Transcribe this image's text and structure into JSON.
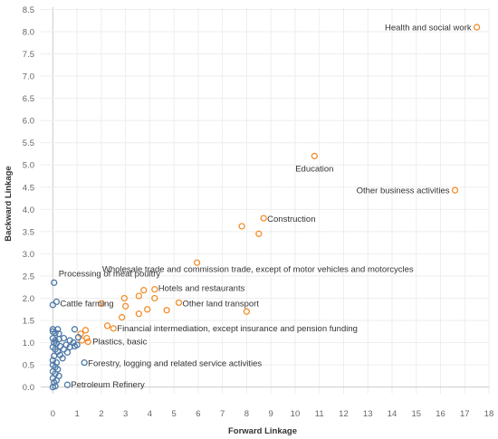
{
  "chart_data": {
    "type": "scatter",
    "title": "",
    "xlabel": "Forward Linkage",
    "ylabel": "Backward Linkage",
    "xlim": [
      -0.5,
      18
    ],
    "ylim": [
      -0.15,
      8.55
    ],
    "xticks": [
      0,
      1,
      2,
      3,
      4,
      5,
      6,
      7,
      8,
      9,
      10,
      11,
      12,
      13,
      14,
      15,
      16,
      17,
      18
    ],
    "yticks": [
      0.0,
      0.5,
      1.0,
      1.5,
      2.0,
      2.5,
      3.0,
      3.5,
      4.0,
      4.5,
      5.0,
      5.5,
      6.0,
      6.5,
      7.0,
      7.5,
      8.0,
      8.5
    ],
    "grid": true,
    "legend": "none",
    "colors": {
      "orange": "#f28e2b",
      "blue": "#4e79a7"
    },
    "series": [
      {
        "color": "orange",
        "points": [
          [
            17.5,
            8.1
          ],
          [
            10.8,
            5.2
          ],
          [
            16.6,
            4.43
          ],
          [
            8.7,
            3.8
          ],
          [
            7.8,
            3.62
          ],
          [
            8.5,
            3.45
          ],
          [
            5.95,
            2.8
          ],
          [
            4.2,
            2.2
          ],
          [
            3.75,
            2.18
          ],
          [
            4.2,
            2.0
          ],
          [
            3.55,
            2.05
          ],
          [
            2.95,
            2.0
          ],
          [
            5.2,
            1.9
          ],
          [
            4.7,
            1.73
          ],
          [
            3.9,
            1.75
          ],
          [
            3.0,
            1.82
          ],
          [
            3.55,
            1.65
          ],
          [
            2.85,
            1.57
          ],
          [
            8.0,
            1.7
          ],
          [
            2.0,
            1.88
          ],
          [
            2.25,
            1.38
          ],
          [
            1.35,
            1.28
          ],
          [
            2.5,
            1.32
          ],
          [
            1.15,
            1.2
          ],
          [
            1.4,
            1.1
          ],
          [
            1.2,
            1.05
          ],
          [
            1.45,
            1.02
          ]
        ]
      },
      {
        "color": "blue",
        "points": [
          [
            0.05,
            2.35
          ],
          [
            0.15,
            1.92
          ],
          [
            0.0,
            1.85
          ],
          [
            0.0,
            1.3
          ],
          [
            0.2,
            1.3
          ],
          [
            0.0,
            1.25
          ],
          [
            0.1,
            1.22
          ],
          [
            0.25,
            1.2
          ],
          [
            0.9,
            1.3
          ],
          [
            1.05,
            1.12
          ],
          [
            0.0,
            1.1
          ],
          [
            0.1,
            1.05
          ],
          [
            0.25,
            1.08
          ],
          [
            0.45,
            1.1
          ],
          [
            0.7,
            1.05
          ],
          [
            0.85,
            1.0
          ],
          [
            1.0,
            0.95
          ],
          [
            0.05,
            1.0
          ],
          [
            0.15,
            0.98
          ],
          [
            0.55,
            0.95
          ],
          [
            0.3,
            0.92
          ],
          [
            0.7,
            0.9
          ],
          [
            0.9,
            0.92
          ],
          [
            0.0,
            0.9
          ],
          [
            0.1,
            0.85
          ],
          [
            0.2,
            0.8
          ],
          [
            0.45,
            0.85
          ],
          [
            0.6,
            0.78
          ],
          [
            0.3,
            0.72
          ],
          [
            0.05,
            0.7
          ],
          [
            0.0,
            0.6
          ],
          [
            0.15,
            0.55
          ],
          [
            0.4,
            0.65
          ],
          [
            0.0,
            0.5
          ],
          [
            0.1,
            0.45
          ],
          [
            0.2,
            0.4
          ],
          [
            0.0,
            0.35
          ],
          [
            0.1,
            0.3
          ],
          [
            0.25,
            0.25
          ],
          [
            0.0,
            0.2
          ],
          [
            0.05,
            0.1
          ],
          [
            0.15,
            0.15
          ],
          [
            0.0,
            0.0
          ],
          [
            0.1,
            0.02
          ],
          [
            1.3,
            0.55
          ],
          [
            0.6,
            0.05
          ]
        ]
      }
    ],
    "annotations": [
      {
        "text": "Health and social work",
        "x": 17.5,
        "y": 8.1,
        "anchor": "end"
      },
      {
        "text": "Education",
        "x": 10.8,
        "y": 5.2,
        "anchor": "middle"
      },
      {
        "text": "Other business activities",
        "x": 16.6,
        "y": 4.43,
        "anchor": "end"
      },
      {
        "text": "Construction",
        "x": 8.7,
        "y": 3.8,
        "anchor": "start"
      },
      {
        "text": "Wholesale trade and commission trade, except of motor vehicles and motorcycles",
        "x": 8.5,
        "y": 3.45,
        "anchor": "middle"
      },
      {
        "text": "Processing of meat poultry",
        "x": 0.05,
        "y": 2.35,
        "anchor": "start"
      },
      {
        "text": "Hotels and restaurants",
        "x": 4.2,
        "y": 2.2,
        "anchor": "start"
      },
      {
        "text": "Cattle farming",
        "x": 0.15,
        "y": 1.92,
        "anchor": "start"
      },
      {
        "text": "Other land transport",
        "x": 5.2,
        "y": 1.9,
        "anchor": "start"
      },
      {
        "text": "Financial intermediation, except insurance and pension funding",
        "x": 2.5,
        "y": 1.32,
        "anchor": "start"
      },
      {
        "text": "Plastics, basic",
        "x": 1.45,
        "y": 1.02,
        "anchor": "start"
      },
      {
        "text": "Forestry, logging and related service activities",
        "x": 1.3,
        "y": 0.55,
        "anchor": "start"
      },
      {
        "text": "Petroleum Refinery",
        "x": 0.6,
        "y": 0.05,
        "anchor": "start"
      }
    ]
  }
}
